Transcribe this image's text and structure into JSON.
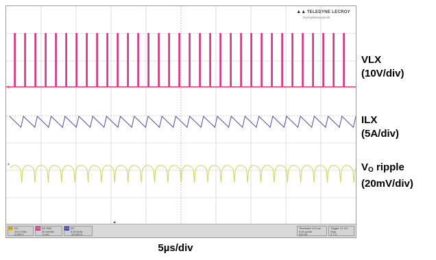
{
  "chart_data": {
    "type": "line",
    "title": "",
    "x_division_label": "5µs/div",
    "grid": true,
    "x_divisions": 10,
    "y_divisions": 8,
    "series": [
      {
        "name": "VLX",
        "scale": "(10V/div)",
        "color": "#d6317f",
        "pulses": 33,
        "waveform": "pulse"
      },
      {
        "name": "ILX",
        "scale": "(5A/div)",
        "color": "#5a5ea6",
        "cycles": 25,
        "waveform": "sawtooth"
      },
      {
        "name": "VO ripple",
        "name_main": "V",
        "name_sub": "O",
        "name_rest": " ripple",
        "scale": "(20mV/div)",
        "color": "#d4d46a",
        "cycles": 26,
        "waveform": "ripple"
      }
    ]
  },
  "logo": {
    "brand": "TELEDYNE LECROY",
    "tagline": "Everywhereyoulook"
  },
  "colors": {
    "grid": "#c8c8c8",
    "grid_center": "#9a9a9a",
    "marker": "#4050a0"
  },
  "status": {
    "c1": {
      "name": "C1",
      "line1": "DC",
      "line2": "10.0 V/div",
      "line3": "0.000 V"
    },
    "c2": {
      "name": "C2",
      "line1": "DC 50Ω",
      "line2": "20 mV/div",
      "line3": "-0 mV"
    },
    "c3": {
      "name": "C3",
      "line1": "DC",
      "line2": "5.00 A/div",
      "line3": "-10.000 A"
    },
    "timebase": {
      "label": "Timebase",
      "value": "10.0 µs",
      "sub1": "5.00 µs/div",
      "sub2": "200 kS"
    },
    "trigger": {
      "label": "Trigger",
      "value": "C1 DC",
      "sub1": "Stop",
      "sub2": "2.7 V"
    }
  }
}
